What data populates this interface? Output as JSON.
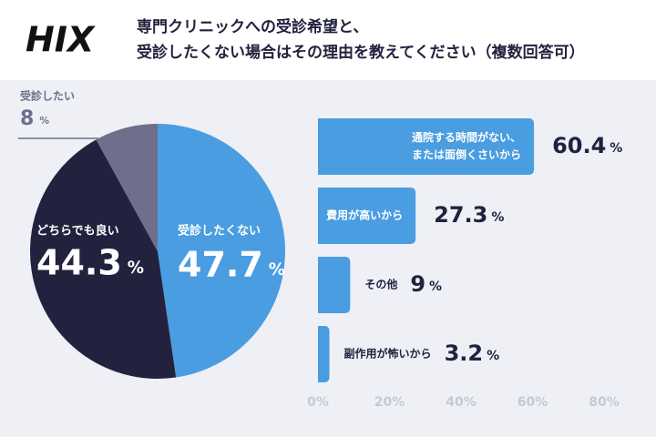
{
  "header": {
    "logo": "HIX",
    "title": [
      "専門クリニックへの受診希望と、",
      "受診したくない場合はその理由を教えてください（複数回答可）"
    ]
  },
  "chart_data": [
    {
      "type": "pie",
      "unit": "%",
      "categories": [
        "受診したくない",
        "どちらでも良い",
        "受診したい"
      ],
      "values": [
        47.7,
        44.3,
        8
      ],
      "colors": [
        "#4a9de0",
        "#22223f",
        "#6f6e8c"
      ]
    },
    {
      "type": "hbar",
      "unit": "%",
      "categories": [
        [
          "通院する時間がない、",
          "または面倒くさいから"
        ],
        [
          "費用が高いから"
        ],
        [
          "その他"
        ],
        [
          "副作用が怖いから"
        ]
      ],
      "values": [
        60.4,
        27.3,
        9,
        3.2
      ],
      "color": "#4a9de0",
      "xlim": [
        0,
        80
      ],
      "xticks": [
        {
          "value": 0,
          "label": "0%"
        },
        {
          "value": 20,
          "label": "20%"
        },
        {
          "value": 40,
          "label": "40%"
        },
        {
          "value": 60,
          "label": "60%"
        },
        {
          "value": 80,
          "label": "80%"
        }
      ],
      "grid": false
    }
  ]
}
